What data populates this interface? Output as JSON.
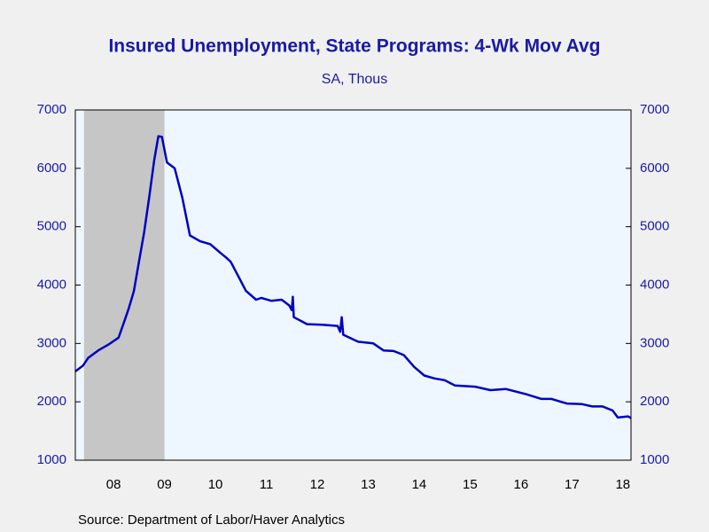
{
  "chart_data": {
    "type": "line",
    "title": "Insured Unemployment, State Programs: 4-Wk Mov Avg",
    "subtitle": "SA, Thous",
    "source": "Source:  Department of Labor/Haver Analytics",
    "x": [
      2007.75,
      2007.9,
      2008.0,
      2008.2,
      2008.4,
      2008.6,
      2008.7,
      2008.8,
      2008.9,
      2009.0,
      2009.1,
      2009.2,
      2009.3,
      2009.38,
      2009.45,
      2009.55,
      2009.7,
      2009.85,
      2010.0,
      2010.2,
      2010.4,
      2010.6,
      2010.7,
      2010.8,
      2010.95,
      2011.1,
      2011.3,
      2011.4,
      2011.6,
      2011.8,
      2011.95,
      2012.0,
      2012.02,
      2012.04,
      2012.3,
      2012.6,
      2012.9,
      2012.95,
      2012.98,
      2013.01,
      2013.3,
      2013.6,
      2013.8,
      2014.0,
      2014.2,
      2014.4,
      2014.6,
      2014.8,
      2015.0,
      2015.2,
      2015.6,
      2015.9,
      2016.2,
      2016.6,
      2016.9,
      2017.1,
      2017.4,
      2017.7,
      2017.9,
      2018.1,
      2018.3,
      2018.4,
      2018.6,
      2018.66
    ],
    "series": [
      {
        "color": "#0000c0",
        "values": [
          2520,
          2620,
          2750,
          2880,
          2980,
          3100,
          3350,
          3600,
          3900,
          4400,
          4900,
          5500,
          6150,
          6550,
          6540,
          6100,
          6000,
          5500,
          4850,
          4750,
          4700,
          4550,
          4480,
          4400,
          4150,
          3900,
          3750,
          3780,
          3730,
          3750,
          3650,
          3570,
          3800,
          3450,
          3330,
          3320,
          3300,
          3200,
          3450,
          3150,
          3030,
          3000,
          2880,
          2870,
          2800,
          2600,
          2450,
          2400,
          2370,
          2280,
          2260,
          2200,
          2220,
          2130,
          2050,
          2050,
          1970,
          1960,
          1920,
          1920,
          1850,
          1730,
          1750,
          1720
        ]
      }
    ],
    "recession": [
      2007.92,
      2009.5
    ],
    "xlim": [
      2007.75,
      2018.66
    ],
    "xticks": [
      {
        "value": 2008.5,
        "label": "08"
      },
      {
        "value": 2009.5,
        "label": "09"
      },
      {
        "value": 2010.5,
        "label": "10"
      },
      {
        "value": 2011.5,
        "label": "11"
      },
      {
        "value": 2012.5,
        "label": "12"
      },
      {
        "value": 2013.5,
        "label": "13"
      },
      {
        "value": 2014.5,
        "label": "14"
      },
      {
        "value": 2015.5,
        "label": "15"
      },
      {
        "value": 2016.5,
        "label": "16"
      },
      {
        "value": 2017.5,
        "label": "17"
      },
      {
        "value": 2018.5,
        "label": "18"
      }
    ],
    "ylim": [
      1000,
      7000
    ],
    "yticks": [
      1000,
      2000,
      3000,
      4000,
      5000,
      6000,
      7000
    ]
  }
}
